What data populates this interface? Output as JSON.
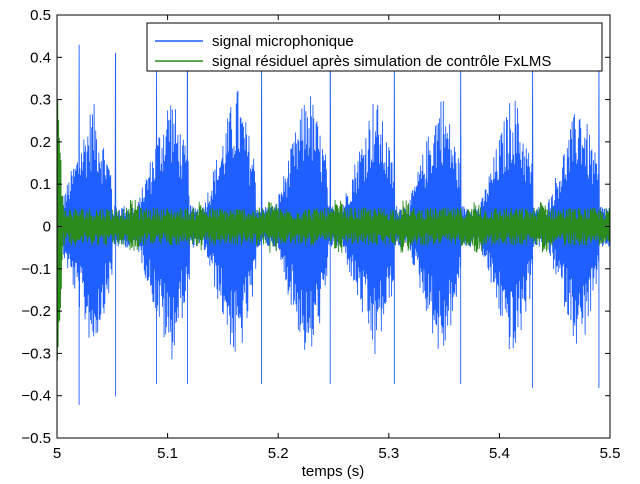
{
  "chart_data": {
    "type": "line",
    "title": "",
    "xlabel": "temps (s)",
    "ylabel": "",
    "xlim": [
      5,
      5.5
    ],
    "ylim": [
      -0.5,
      0.5
    ],
    "x_ticks": [
      5,
      5.1,
      5.2,
      5.3,
      5.4,
      5.5
    ],
    "x_tick_labels": [
      "5",
      "5.1",
      "5.2",
      "5.3",
      "5.4",
      "5.5"
    ],
    "y_ticks": [
      -0.5,
      -0.4,
      -0.3,
      -0.2,
      -0.1,
      0,
      0.1,
      0.2,
      0.3,
      0.4,
      0.5
    ],
    "y_tick_labels": [
      "−0.5",
      "−0.4",
      "−0.3",
      "−0.2",
      "−0.1",
      "0",
      "0.1",
      "0.2",
      "0.3",
      "0.4",
      "0.5"
    ],
    "grid": false,
    "legend_position": "top-right",
    "series": [
      {
        "name": "signal microphonique",
        "color": "#1f5fff",
        "burst_starts": [
          5.0,
          5.07,
          5.13,
          5.195,
          5.255,
          5.315,
          5.38,
          5.44
        ],
        "burst_peaks": [
          0.3,
          0.33,
          0.34,
          0.34,
          0.32,
          0.33,
          0.33,
          0.31
        ],
        "spike_x": [
          5.02,
          5.053,
          5.09,
          5.118,
          5.185,
          5.247,
          5.305,
          5.365,
          5.43,
          5.49
        ],
        "spike_values": [
          0.43,
          0.41,
          0.38,
          0.38,
          0.38,
          0.38,
          0.38,
          0.38,
          0.39,
          0.39
        ]
      },
      {
        "name": "signal résiduel après simulation de contrôle FxLMS",
        "color": "#2b8b1c",
        "envelope": 0.045,
        "initial_transient": 0.2
      }
    ]
  }
}
